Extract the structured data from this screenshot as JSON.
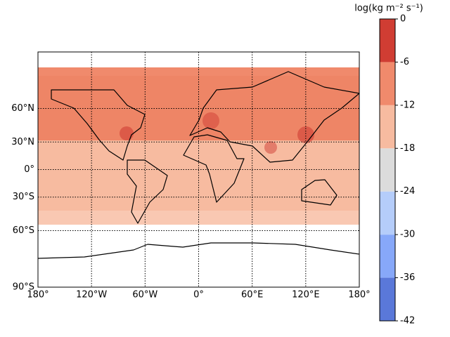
{
  "map": {
    "latlim": [
      -90,
      90
    ],
    "lonlim": [
      -180,
      180
    ],
    "lat_ticks": [
      {
        "value": 60,
        "label": "60°N"
      },
      {
        "value": 30,
        "label": "30°N"
      },
      {
        "value": 0,
        "label": "0°"
      },
      {
        "value": -30,
        "label": "30°S"
      },
      {
        "value": -60,
        "label": "60°S"
      },
      {
        "value": -90,
        "label": "90°S"
      }
    ],
    "lon_ticks": [
      {
        "value": -180,
        "label": "180°"
      },
      {
        "value": -120,
        "label": "120°W"
      },
      {
        "value": -60,
        "label": "60°W"
      },
      {
        "value": 0,
        "label": "0°"
      },
      {
        "value": 60,
        "label": "60°E"
      },
      {
        "value": 120,
        "label": "120°E"
      },
      {
        "value": 180,
        "label": "180°"
      }
    ],
    "colorbar": {
      "label": "log(kg m⁻² s⁻¹)",
      "levels": [
        -42,
        -36,
        -30,
        -24,
        -18,
        -12,
        -6,
        0
      ],
      "colors": [
        "#5a78d9",
        "#87a8f9",
        "#b5cdfa",
        "#dcdcdc",
        "#f7bba0",
        "#f08a6c",
        "#d03d33"
      ]
    }
  }
}
